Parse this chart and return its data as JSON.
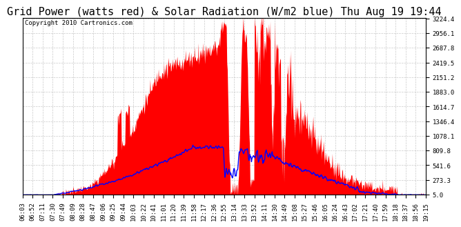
{
  "title": "Grid Power (watts red) & Solar Radiation (W/m2 blue) Thu Aug 19 19:44",
  "copyright": "Copyright 2010 Cartronics.com",
  "yticks": [
    5.0,
    273.3,
    541.6,
    809.8,
    1078.1,
    1346.4,
    1614.7,
    1883.0,
    2151.2,
    2419.5,
    2687.8,
    2956.1,
    3224.4
  ],
  "ymin": 0,
  "ymax": 3224.4,
  "background_color": "#ffffff",
  "plot_bg_color": "#ffffff",
  "grid_color": "#bbbbbb",
  "red_color": "#ff0000",
  "blue_color": "#0000ff",
  "title_fontsize": 11,
  "copyright_fontsize": 6.5,
  "tick_fontsize": 6.5,
  "xtick_labels": [
    "06:03",
    "06:52",
    "07:11",
    "07:30",
    "07:49",
    "08:09",
    "08:28",
    "08:47",
    "09:06",
    "09:25",
    "09:44",
    "10:03",
    "10:22",
    "10:41",
    "11:01",
    "11:20",
    "11:39",
    "11:58",
    "12:17",
    "12:36",
    "12:55",
    "13:14",
    "13:33",
    "13:52",
    "14:11",
    "14:30",
    "14:49",
    "15:08",
    "15:27",
    "15:46",
    "16:05",
    "16:24",
    "16:43",
    "17:02",
    "17:21",
    "17:40",
    "17:59",
    "18:18",
    "18:37",
    "18:56",
    "19:15"
  ]
}
